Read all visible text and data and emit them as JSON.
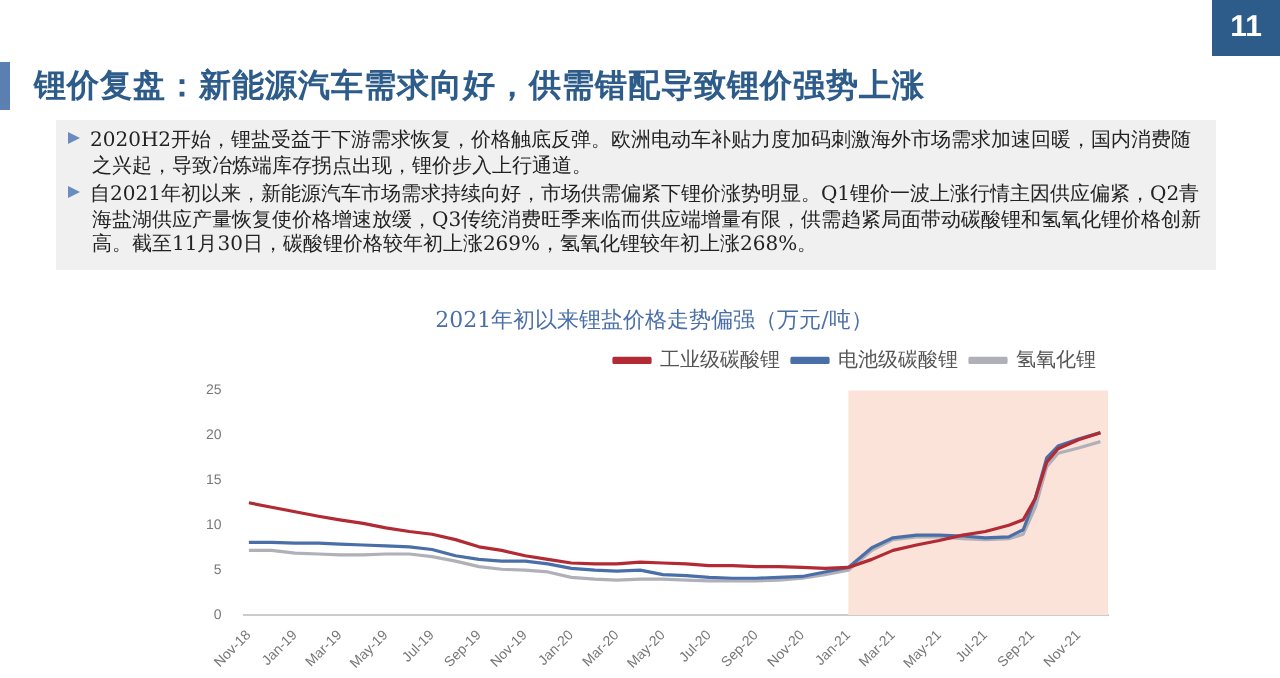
{
  "chart_data": {
    "type": "line",
    "title": "锂价复盘：新能源汽车需求向好，供需错配导致锂价强势上涨",
    "subtitle": "2021年初以来锂盐价格走势偏强（万元/吨）",
    "annotations": [
      "11",
      "2020H2开始，锂盐受益于下游需求恢复，价格触底反弹。欧洲电动车补贴力度加码刺激海外市场需求加速回暖，国内消费随之兴起，导致冶炼端库存拐点出现，锂价步入上行通道。",
      "自2021年初以来，新能源汽车市场需求持续向好，市场供需偏紧下锂价涨势明显。Q1锂价一波上涨行情主因供应偏紧，Q2青海盐湖供应产量恢复使价格增速放缓，Q3传统消费旺季来临而供应端增量有限，供需趋紧局面带动碳酸锂和氢氧化锂价格创新高。截至11月30日，碳酸锂价格较年初上涨269%，氢氧化锂较年初上涨268%。"
    ],
    "x": [
      "2018-11-01",
      "2018-12-01",
      "2019-01-01",
      "2019-02-01",
      "2019-03-01",
      "2019-04-01",
      "2019-05-01",
      "2019-06-01",
      "2019-07-01",
      "2019-08-01",
      "2019-09-01",
      "2019-10-01",
      "2019-11-01",
      "2019-12-01",
      "2020-01-01",
      "2020-02-01",
      "2020-03-01",
      "2020-04-01",
      "2020-05-01",
      "2020-06-01",
      "2020-07-01",
      "2020-08-01",
      "2020-09-01",
      "2020-10-01",
      "2020-11-01",
      "2020-12-01",
      "2021-01-01",
      "2021-02-01",
      "2021-03-01",
      "2021-04-01",
      "2021-05-01",
      "2021-06-01",
      "2021-07-01",
      "2021-08-01",
      "2021-08-20",
      "2021-09-05",
      "2021-09-20",
      "2021-10-05",
      "2021-11-01",
      "2021-11-30"
    ],
    "series": [
      {
        "name": "工业级碳酸锂",
        "color": "#b22a34",
        "values": [
          12.5,
          12.0,
          11.5,
          11.0,
          10.6,
          10.2,
          9.7,
          9.3,
          9.0,
          8.4,
          7.6,
          7.2,
          6.6,
          6.2,
          5.8,
          5.7,
          5.7,
          5.9,
          5.8,
          5.7,
          5.5,
          5.5,
          5.4,
          5.4,
          5.3,
          5.2,
          5.3,
          6.2,
          7.2,
          7.8,
          8.3,
          8.9,
          9.3,
          10.0,
          10.6,
          13.0,
          17.0,
          18.5,
          19.5,
          20.3
        ]
      },
      {
        "name": "电池级碳酸锂",
        "color": "#4a6fa8",
        "values": [
          8.1,
          8.1,
          8.0,
          8.0,
          7.9,
          7.8,
          7.7,
          7.6,
          7.3,
          6.6,
          6.2,
          6.0,
          6.0,
          5.7,
          5.2,
          5.0,
          4.9,
          5.0,
          4.5,
          4.4,
          4.2,
          4.1,
          4.1,
          4.2,
          4.3,
          4.8,
          5.3,
          7.5,
          8.6,
          8.9,
          8.9,
          8.8,
          8.6,
          8.7,
          9.5,
          13.0,
          17.5,
          18.8,
          19.6,
          20.3
        ]
      },
      {
        "name": "氢氧化锂",
        "color": "#b0b0b8",
        "values": [
          7.2,
          7.2,
          6.9,
          6.8,
          6.7,
          6.7,
          6.8,
          6.8,
          6.5,
          6.0,
          5.4,
          5.1,
          5.0,
          4.8,
          4.2,
          4.0,
          3.9,
          4.0,
          4.0,
          3.9,
          3.8,
          3.8,
          3.8,
          3.9,
          4.1,
          4.5,
          5.0,
          7.2,
          8.4,
          8.7,
          8.7,
          8.5,
          8.4,
          8.5,
          9.0,
          12.0,
          16.5,
          18.0,
          18.6,
          19.3
        ]
      }
    ],
    "xlim": [
      "2018-10-25",
      "2021-12-10"
    ],
    "xticks": [
      {
        "value": "2018-11",
        "label": "Nov-18"
      },
      {
        "value": "2019-01",
        "label": "Jan-19"
      },
      {
        "value": "2019-03",
        "label": "Mar-19"
      },
      {
        "value": "2019-05",
        "label": "May-19"
      },
      {
        "value": "2019-07",
        "label": "Jul-19"
      },
      {
        "value": "2019-09",
        "label": "Sep-19"
      },
      {
        "value": "2019-11",
        "label": "Nov-19"
      },
      {
        "value": "2020-01",
        "label": "Jan-20"
      },
      {
        "value": "2020-03",
        "label": "Mar-20"
      },
      {
        "value": "2020-05",
        "label": "May-20"
      },
      {
        "value": "2020-07",
        "label": "Jul-20"
      },
      {
        "value": "2020-09",
        "label": "Sep-20"
      },
      {
        "value": "2020-11",
        "label": "Nov-20"
      },
      {
        "value": "2021-01",
        "label": "Jan-21"
      },
      {
        "value": "2021-03",
        "label": "Mar-21"
      },
      {
        "value": "2021-05",
        "label": "May-21"
      },
      {
        "value": "2021-07",
        "label": "Jul-21"
      },
      {
        "value": "2021-09",
        "label": "Sep-21"
      },
      {
        "value": "2021-11",
        "label": "Nov-21"
      }
    ],
    "ylim": [
      0,
      25
    ],
    "yticks": [
      0,
      5,
      10,
      15,
      20,
      25
    ],
    "bands": [
      {
        "axis": "x",
        "from": "2021-01-01",
        "to": "2021-12-10",
        "color": "#fbe3da"
      }
    ],
    "legend": "top",
    "grid": false,
    "marker": "none",
    "line_style": "solid"
  }
}
